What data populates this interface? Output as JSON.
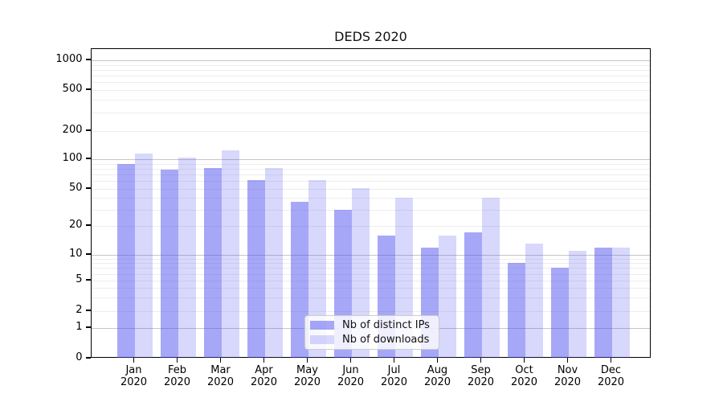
{
  "title": "DEDS 2020",
  "chart_data": {
    "type": "bar",
    "title": "DEDS 2020",
    "y_scale": "symlog",
    "grid": true,
    "legend_position": "bottom-center",
    "y_tick_labels": [
      "0",
      "1",
      "2",
      "5",
      "10",
      "20",
      "50",
      "100",
      "200",
      "500",
      "1000"
    ],
    "y_ticks": [
      0,
      1,
      2,
      5,
      10,
      20,
      50,
      100,
      200,
      500,
      1000
    ],
    "ylim": [
      0,
      1200
    ],
    "categories": [
      "Jan",
      "Feb",
      "Mar",
      "Apr",
      "May",
      "Jun",
      "Jul",
      "Aug",
      "Sep",
      "Oct",
      "Nov",
      "Dec"
    ],
    "category_year": "2020",
    "series": [
      {
        "name": "Nb of distinct IPs",
        "color": "rgba(72,72,240,0.48)",
        "color_hex_on_white": "#a8a8f8",
        "values": [
          89,
          78,
          81,
          62,
          36,
          30,
          16,
          12,
          17,
          8,
          7,
          12
        ]
      },
      {
        "name": "Nb of downloads",
        "color": "rgba(72,72,240,0.21)",
        "color_hex_on_white": "#d8d8f8",
        "values": [
          114,
          104,
          124,
          82,
          61,
          51,
          40,
          16,
          40,
          13,
          11,
          12
        ]
      }
    ]
  }
}
